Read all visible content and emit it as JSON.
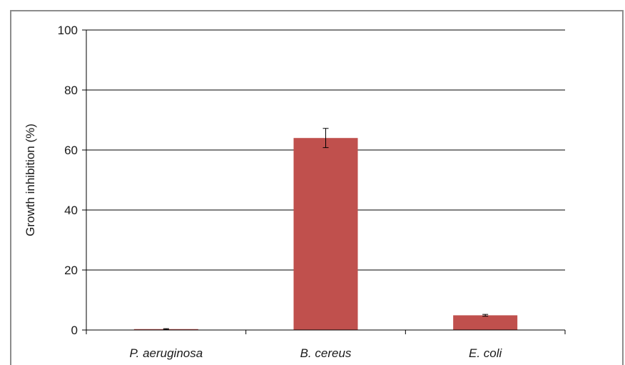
{
  "chart_data": {
    "type": "bar",
    "title": "",
    "xlabel": "",
    "ylabel": "Growth inhibition (%)",
    "categories": [
      "P. aeruginosa",
      "B. cereus",
      "E. coli"
    ],
    "values": [
      0.3,
      64,
      4.9
    ],
    "error": [
      0.15,
      3.2,
      0.3
    ],
    "ylim": [
      0,
      100
    ],
    "yticks": [
      0,
      20,
      40,
      60,
      80,
      100
    ],
    "grid": true,
    "bar_color": "#c0504d",
    "legend": "none"
  }
}
